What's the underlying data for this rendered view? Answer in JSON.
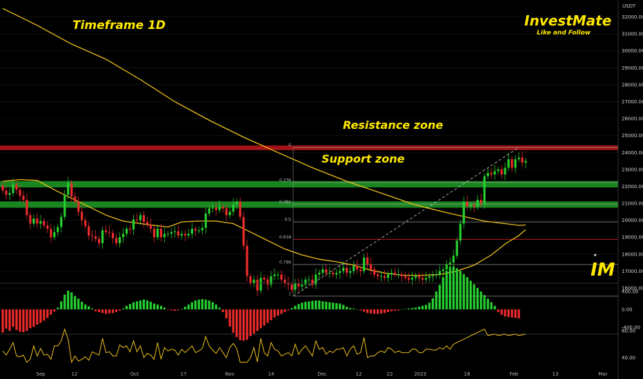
{
  "header": {
    "title": "Timeframe 1D",
    "brand": "InvestMate",
    "brand_sub": "Like and Follow",
    "logo_text": "IM"
  },
  "annotations": {
    "resistance": "Resistance zone",
    "support": "Support zone"
  },
  "colors": {
    "background": "#000000",
    "up": "#26d130",
    "down": "#ef2b2b",
    "ma": "#f2c21b",
    "resistance_band": "#c0161b",
    "support_band": "#1e9e27",
    "fib_red": "#b71c1c",
    "annotation": "#ffe900"
  },
  "chart_data": [
    {
      "type": "candlestick",
      "currency": "USDT",
      "price_axis_ticks": [
        "32000.00",
        "31000.00",
        "30000.00",
        "29000.00",
        "28000.00",
        "27000.00",
        "26000.00",
        "25000.00",
        "24000.00",
        "23000.00",
        "22000.00",
        "21000.00",
        "20000.00",
        "19000.00",
        "18000.00",
        "17000.00",
        "16000.00"
      ],
      "price_range": [
        15500,
        32800
      ],
      "date_ticks": [
        "Sep",
        "12",
        "Oct",
        "17",
        "Nov",
        "14",
        "Dec",
        "12",
        "22",
        "2023",
        "16",
        "Feb",
        "13",
        "Mar"
      ],
      "zones": [
        {
          "name": "Resistance zone",
          "from": 24200,
          "to": 24350
        },
        {
          "name": "Support zone",
          "from": 22000,
          "to": 22250
        },
        {
          "name": "",
          "from": 20800,
          "to": 21050
        }
      ],
      "fib_levels": [
        {
          "label": "0",
          "price": 24300
        },
        {
          "label": "0.236",
          "price": 22230
        },
        {
          "label": "0.382",
          "price": 20950
        },
        {
          "label": "0.5",
          "price": 19900
        },
        {
          "label": "0.618",
          "price": 18870
        },
        {
          "label": "0.786",
          "price": 17390
        },
        {
          "label": "1",
          "price": 15520
        }
      ],
      "ma_long": [
        [
          0,
          32500
        ],
        [
          10,
          31500
        ],
        [
          20,
          30400
        ],
        [
          30,
          29500
        ],
        [
          40,
          28300
        ],
        [
          50,
          27000
        ],
        [
          60,
          25900
        ],
        [
          70,
          24900
        ],
        [
          80,
          24000
        ],
        [
          90,
          23100
        ],
        [
          100,
          22300
        ],
        [
          110,
          21600
        ],
        [
          120,
          20900
        ],
        [
          130,
          20400
        ],
        [
          140,
          19950
        ],
        [
          150,
          19700
        ],
        [
          152,
          19720
        ]
      ],
      "ma_short": [
        [
          0,
          22300
        ],
        [
          5,
          22400
        ],
        [
          10,
          22350
        ],
        [
          15,
          21800
        ],
        [
          20,
          21300
        ],
        [
          25,
          20800
        ],
        [
          30,
          20300
        ],
        [
          35,
          19950
        ],
        [
          42,
          19750
        ],
        [
          48,
          19600
        ],
        [
          52,
          19900
        ],
        [
          57,
          19950
        ],
        [
          62,
          19950
        ],
        [
          67,
          19800
        ],
        [
          72,
          19300
        ],
        [
          77,
          18800
        ],
        [
          82,
          18300
        ],
        [
          87,
          17950
        ],
        [
          92,
          17700
        ],
        [
          97,
          17550
        ],
        [
          102,
          17350
        ],
        [
          107,
          17050
        ],
        [
          112,
          16850
        ],
        [
          117,
          16750
        ],
        [
          122,
          16750
        ],
        [
          127,
          16800
        ],
        [
          132,
          17000
        ],
        [
          137,
          17350
        ],
        [
          142,
          17950
        ],
        [
          146,
          18600
        ],
        [
          150,
          19100
        ],
        [
          152,
          19450
        ]
      ],
      "closes": [
        21750,
        21500,
        21600,
        22100,
        21800,
        21450,
        21200,
        20300,
        19800,
        20100,
        19800,
        19950,
        19700,
        19500,
        19000,
        19300,
        19600,
        20200,
        21500,
        22200,
        21400,
        21100,
        20500,
        20000,
        19650,
        19100,
        19050,
        18900,
        18650,
        19400,
        19300,
        19250,
        18950,
        18650,
        19000,
        19200,
        19500,
        19450,
        20050,
        20000,
        20300,
        19900,
        19750,
        19500,
        19000,
        19500,
        19000,
        19200,
        19200,
        19300,
        19350,
        19100,
        19200,
        19100,
        19200,
        19500,
        19400,
        19400,
        19550,
        20400,
        20700,
        20750,
        20600,
        20800,
        20700,
        20300,
        20500,
        20950,
        21100,
        20200,
        18500,
        16700,
        16300,
        16500,
        15850,
        16600,
        16500,
        16200,
        16700,
        16800,
        16800,
        16500,
        16300,
        16200,
        15900,
        16300,
        16100,
        16200,
        16500,
        16500,
        16200,
        16800,
        16900,
        17100,
        16900,
        16900,
        16800,
        16900,
        17000,
        17200,
        16900,
        17000,
        17300,
        17100,
        17000,
        17800,
        17400,
        17100,
        16800,
        16700,
        16700,
        16600,
        16800,
        16900,
        16800,
        16800,
        16700,
        16600,
        16500,
        16600,
        16700,
        16600,
        16500,
        16600,
        16700,
        16750,
        16800,
        17000,
        17100,
        17400,
        17500,
        17900,
        18800,
        19800,
        21100,
        20800,
        20900,
        20800,
        21200,
        21000,
        22600,
        22800,
        22700,
        22900,
        23000,
        22700,
        23100,
        23600,
        23100,
        23600,
        23700,
        23400,
        23500
      ],
      "macd_hist": [
        -520,
        -430,
        -480,
        -390,
        -460,
        -500,
        -510,
        -480,
        -420,
        -390,
        -340,
        -300,
        -250,
        -190,
        -120,
        -50,
        40,
        180,
        330,
        420,
        380,
        300,
        240,
        170,
        110,
        70,
        20,
        -40,
        -60,
        -80,
        -100,
        -90,
        -80,
        -60,
        -30,
        20,
        80,
        120,
        160,
        180,
        200,
        220,
        200,
        170,
        130,
        110,
        80,
        40,
        -10,
        -20,
        -30,
        -20,
        10,
        60,
        110,
        160,
        200,
        220,
        230,
        220,
        200,
        160,
        110,
        40,
        -60,
        -200,
        -380,
        -520,
        -620,
        -690,
        -700,
        -680,
        -600,
        -540,
        -480,
        -420,
        -360,
        -300,
        -240,
        -180,
        -140,
        -100,
        -60,
        -20,
        30,
        80,
        120,
        150,
        170,
        180,
        190,
        200,
        200,
        180,
        170,
        160,
        150,
        140,
        130,
        100,
        60,
        30,
        20,
        0,
        -20,
        -50,
        -80,
        -90,
        -100,
        -100,
        -90,
        -80,
        -60,
        -40,
        -30,
        -20,
        0,
        10,
        20,
        30,
        40,
        60,
        80,
        100,
        150,
        250,
        400,
        550,
        720,
        860,
        950,
        960,
        920,
        860,
        790,
        720,
        640,
        560,
        480,
        400,
        320,
        240,
        160,
        80,
        -60,
        -120,
        -160,
        -170,
        -180,
        -190,
        -200
      ]
    }
  ],
  "macd_axis_ticks": [
    "400.00",
    "0.00",
    "-400.00"
  ],
  "rsi_axis_ticks": [
    "80.00",
    "40.00"
  ]
}
